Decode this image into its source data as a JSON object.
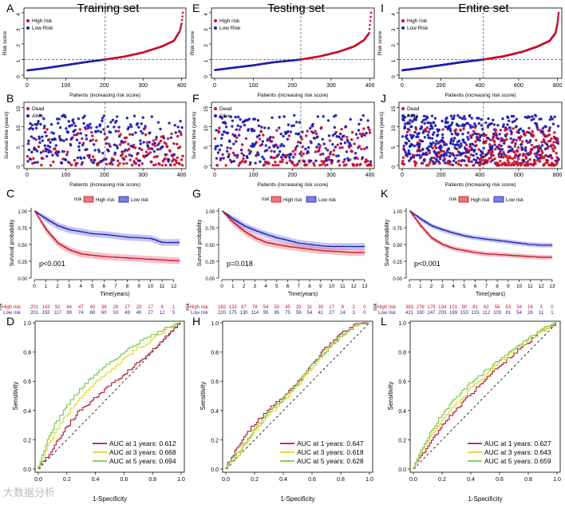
{
  "watermark": "大数据分析",
  "columns": [
    {
      "title": "Training set",
      "letters": [
        "A",
        "B",
        "C",
        "D"
      ],
      "risk": {
        "n": 403,
        "cut": 202,
        "xticks": [
          0,
          100,
          200,
          300,
          400
        ],
        "yticks": [
          0,
          1,
          2,
          3,
          4
        ],
        "ymax": 4.1,
        "key": [
          40,
          0.42,
          100,
          0.64,
          150,
          0.83,
          202,
          1.0,
          250,
          1.18,
          300,
          1.45,
          350,
          1.85,
          380,
          2.2,
          395,
          2.8,
          400,
          3.3,
          403,
          4.0
        ]
      },
      "surv": {
        "n": 403,
        "cut": 202,
        "xticks": [
          0,
          100,
          200,
          300,
          400
        ],
        "yticks": [
          0,
          5,
          10,
          15
        ],
        "seed": 11
      },
      "km": {
        "pvalue": "p<0.001",
        "tmax": 12.5,
        "xticks": [
          0,
          1,
          2,
          3,
          4,
          5,
          6,
          7,
          8,
          9,
          10,
          11,
          12
        ],
        "high": [
          [
            0,
            1
          ],
          [
            1,
            0.72
          ],
          [
            2,
            0.52
          ],
          [
            3,
            0.42
          ],
          [
            4,
            0.36
          ],
          [
            5,
            0.34
          ],
          [
            6,
            0.32
          ],
          [
            7,
            0.31
          ],
          [
            8,
            0.3
          ],
          [
            9,
            0.29
          ],
          [
            10,
            0.28
          ],
          [
            11,
            0.27
          ],
          [
            12,
            0.26
          ],
          [
            12.5,
            0.26
          ]
        ],
        "low": [
          [
            0,
            1
          ],
          [
            1,
            0.88
          ],
          [
            2,
            0.78
          ],
          [
            3,
            0.72
          ],
          [
            4,
            0.69
          ],
          [
            5,
            0.66
          ],
          [
            6,
            0.65
          ],
          [
            7,
            0.63
          ],
          [
            8,
            0.61
          ],
          [
            9,
            0.6
          ],
          [
            10,
            0.59
          ],
          [
            11,
            0.53
          ],
          [
            12,
            0.53
          ],
          [
            12.5,
            0.53
          ]
        ],
        "ci_high": 0.05,
        "ci_low": 0.05,
        "table_high": [
          "201",
          "143",
          "92",
          "64",
          "47",
          "40",
          "36",
          "29",
          "27",
          "23",
          "17",
          "8",
          "1"
        ],
        "table_low": [
          "201",
          "155",
          "117",
          "89",
          "74",
          "68",
          "60",
          "53",
          "49",
          "40",
          "27",
          "12",
          "5"
        ]
      },
      "roc": {
        "auc": [
          {
            "label": "AUC at 1 years: 0.612",
            "color": "#b2182b",
            "pts": [
              0,
              0,
              0.1,
              0.12,
              0.2,
              0.28,
              0.3,
              0.4,
              0.4,
              0.48,
              0.5,
              0.56,
              0.6,
              0.64,
              0.7,
              0.72,
              0.8,
              0.8,
              0.9,
              0.9,
              1,
              1
            ]
          },
          {
            "label": "AUC at 3 years: 0.668",
            "color": "#e6d627",
            "pts": [
              0,
              0,
              0.1,
              0.2,
              0.2,
              0.36,
              0.3,
              0.48,
              0.4,
              0.58,
              0.5,
              0.66,
              0.6,
              0.74,
              0.7,
              0.82,
              0.8,
              0.88,
              0.9,
              0.95,
              1,
              1
            ]
          },
          {
            "label": "AUC at 5 years: 0.694",
            "color": "#74c94a",
            "pts": [
              0,
              0,
              0.1,
              0.26,
              0.2,
              0.42,
              0.3,
              0.54,
              0.4,
              0.64,
              0.5,
              0.72,
              0.6,
              0.79,
              0.7,
              0.86,
              0.8,
              0.91,
              0.9,
              0.96,
              1,
              1
            ]
          }
        ]
      }
    },
    {
      "title": "Testing set",
      "letters": [
        "E",
        "F",
        "G",
        "H"
      ],
      "risk": {
        "n": 403,
        "cut": 222,
        "xticks": [
          0,
          100,
          200,
          300,
          400
        ],
        "yticks": [
          0,
          1,
          2,
          3,
          4
        ],
        "ymax": 4.1,
        "key": [
          40,
          0.45,
          100,
          0.63,
          150,
          0.82,
          222,
          1.0,
          270,
          1.2,
          320,
          1.5,
          360,
          1.85,
          385,
          2.25,
          398,
          2.7,
          403,
          4.0
        ]
      },
      "surv": {
        "n": 403,
        "cut": 222,
        "xticks": [
          0,
          100,
          200,
          300,
          400
        ],
        "yticks": [
          0,
          5,
          10,
          15
        ],
        "seed": 29
      },
      "km": {
        "pvalue": "p=0.018",
        "tmax": 13.3,
        "xticks": [
          0,
          1,
          2,
          3,
          4,
          5,
          6,
          7,
          8,
          9,
          10,
          11,
          12,
          13
        ],
        "high": [
          [
            0,
            1
          ],
          [
            1,
            0.83
          ],
          [
            2,
            0.7
          ],
          [
            3,
            0.6
          ],
          [
            4,
            0.53
          ],
          [
            5,
            0.5
          ],
          [
            6,
            0.47
          ],
          [
            7,
            0.45
          ],
          [
            8,
            0.43
          ],
          [
            9,
            0.41
          ],
          [
            10,
            0.4
          ],
          [
            11,
            0.39
          ],
          [
            12,
            0.38
          ],
          [
            13,
            0.38
          ]
        ],
        "low": [
          [
            0,
            1
          ],
          [
            1,
            0.88
          ],
          [
            2,
            0.78
          ],
          [
            3,
            0.71
          ],
          [
            4,
            0.65
          ],
          [
            5,
            0.6
          ],
          [
            6,
            0.56
          ],
          [
            7,
            0.52
          ],
          [
            8,
            0.5
          ],
          [
            9,
            0.48
          ],
          [
            10,
            0.47
          ],
          [
            11,
            0.47
          ],
          [
            12,
            0.47
          ],
          [
            13,
            0.47
          ]
        ],
        "ci_high": 0.05,
        "ci_low": 0.05,
        "table_high": [
          "182",
          "133",
          "87",
          "78",
          "54",
          "50",
          "45",
          "33",
          "31",
          "30",
          "17",
          "8",
          "2",
          "0"
        ],
        "table_low": [
          "220",
          "175",
          "130",
          "114",
          "95",
          "85",
          "75",
          "59",
          "54",
          "41",
          "27",
          "14",
          "3",
          "0"
        ]
      },
      "roc": {
        "auc": [
          {
            "label": "AUC at 1 years: 0.647",
            "color": "#b2182b",
            "pts": [
              0,
              0,
              0.1,
              0.16,
              0.2,
              0.3,
              0.3,
              0.4,
              0.4,
              0.48,
              0.5,
              0.58,
              0.6,
              0.7,
              0.7,
              0.82,
              0.8,
              0.92,
              0.9,
              0.98,
              1,
              1
            ]
          },
          {
            "label": "AUC at 3 years: 0.618",
            "color": "#e6d627",
            "pts": [
              0,
              0,
              0.1,
              0.1,
              0.2,
              0.24,
              0.3,
              0.36,
              0.4,
              0.46,
              0.5,
              0.56,
              0.6,
              0.68,
              0.7,
              0.8,
              0.8,
              0.9,
              0.9,
              0.97,
              1,
              1
            ]
          },
          {
            "label": "AUC at 5 years: 0.628",
            "color": "#74c94a",
            "pts": [
              0,
              0,
              0.1,
              0.12,
              0.2,
              0.26,
              0.3,
              0.38,
              0.4,
              0.47,
              0.5,
              0.58,
              0.6,
              0.7,
              0.7,
              0.8,
              0.8,
              0.9,
              0.9,
              0.97,
              1,
              1
            ]
          }
        ]
      }
    },
    {
      "title": "Entire set",
      "letters": [
        "I",
        "J",
        "K",
        "L"
      ],
      "risk": {
        "n": 806,
        "cut": 418,
        "xticks": [
          0,
          200,
          400,
          600,
          800
        ],
        "yticks": [
          0,
          1,
          2,
          3,
          4
        ],
        "ymax": 4.1,
        "key": [
          80,
          0.43,
          200,
          0.64,
          300,
          0.82,
          418,
          1.0,
          520,
          1.2,
          620,
          1.5,
          700,
          1.85,
          760,
          2.2,
          790,
          2.7,
          800,
          3.3,
          806,
          4.0
        ]
      },
      "surv": {
        "n": 806,
        "cut": 418,
        "xticks": [
          0,
          200,
          400,
          600,
          800
        ],
        "yticks": [
          0,
          5,
          10,
          15
        ],
        "seed": 47
      },
      "km": {
        "pvalue": "p<0.001",
        "tmax": 13.3,
        "xticks": [
          0,
          1,
          2,
          3,
          4,
          5,
          6,
          7,
          8,
          9,
          10,
          11,
          12,
          13
        ],
        "high": [
          [
            0,
            1
          ],
          [
            1,
            0.78
          ],
          [
            2,
            0.6
          ],
          [
            3,
            0.5
          ],
          [
            4,
            0.44
          ],
          [
            5,
            0.41
          ],
          [
            6,
            0.38
          ],
          [
            7,
            0.36
          ],
          [
            8,
            0.35
          ],
          [
            9,
            0.34
          ],
          [
            10,
            0.33
          ],
          [
            11,
            0.32
          ],
          [
            12,
            0.31
          ],
          [
            13,
            0.31
          ]
        ],
        "low": [
          [
            0,
            1
          ],
          [
            1,
            0.88
          ],
          [
            2,
            0.78
          ],
          [
            3,
            0.72
          ],
          [
            4,
            0.67
          ],
          [
            5,
            0.63
          ],
          [
            6,
            0.6
          ],
          [
            7,
            0.58
          ],
          [
            8,
            0.56
          ],
          [
            9,
            0.54
          ],
          [
            10,
            0.52
          ],
          [
            11,
            0.5
          ],
          [
            12,
            0.49
          ],
          [
            13,
            0.49
          ]
        ],
        "ci_high": 0.035,
        "ci_low": 0.035,
        "table_high": [
          "383",
          "276",
          "179",
          "134",
          "101",
          "90",
          "81",
          "62",
          "58",
          "53",
          "34",
          "16",
          "3",
          "0"
        ],
        "table_low": [
          "421",
          "330",
          "247",
          "203",
          "169",
          "153",
          "133",
          "112",
          "103",
          "81",
          "54",
          "26",
          "11",
          "1"
        ]
      },
      "roc": {
        "auc": [
          {
            "label": "AUC at 1 years: 0.627",
            "color": "#b2182b",
            "pts": [
              0,
              0,
              0.1,
              0.14,
              0.2,
              0.28,
              0.3,
              0.4,
              0.4,
              0.5,
              0.5,
              0.6,
              0.6,
              0.7,
              0.7,
              0.78,
              0.8,
              0.86,
              0.9,
              0.94,
              1,
              1
            ]
          },
          {
            "label": "AUC at 3 years: 0.643",
            "color": "#e6d627",
            "pts": [
              0,
              0,
              0.1,
              0.18,
              0.2,
              0.32,
              0.3,
              0.44,
              0.4,
              0.54,
              0.5,
              0.63,
              0.6,
              0.72,
              0.7,
              0.8,
              0.8,
              0.87,
              0.9,
              0.94,
              1,
              1
            ]
          },
          {
            "label": "AUC at 5 years: 0.659",
            "color": "#74c94a",
            "pts": [
              0,
              0,
              0.1,
              0.2,
              0.2,
              0.36,
              0.3,
              0.48,
              0.4,
              0.58,
              0.5,
              0.66,
              0.6,
              0.74,
              0.7,
              0.82,
              0.8,
              0.88,
              0.9,
              0.95,
              1,
              1
            ]
          }
        ]
      }
    }
  ],
  "labels": {
    "risk_y": "Risk score",
    "risk_x": "Patients (increasing risk score)",
    "risk_legend": [
      "High risk",
      "Low Risk"
    ],
    "surv_y": "Survival time (years)",
    "surv_x": "Patients (increasing risk score)",
    "surv_legend": [
      "Dead",
      "Alive"
    ],
    "km_legend_title": "risk",
    "km_legend": [
      "High risk",
      "Low risk"
    ],
    "km_y": "Survival probability",
    "km_x": "Time(years)",
    "table_title": "risk",
    "table_rows": [
      "High risk",
      "Low risk"
    ],
    "roc_y": "Sensitivity",
    "roc_x": "1-Specificity",
    "roc_ticks": [
      "0.0",
      "0.2",
      "0.4",
      "0.6",
      "0.8",
      "1.0"
    ]
  },
  "colors": {
    "high": "#c8102e",
    "low": "#1f1fb4",
    "high_band": "#e8787f",
    "low_band": "#7f7fe6"
  }
}
